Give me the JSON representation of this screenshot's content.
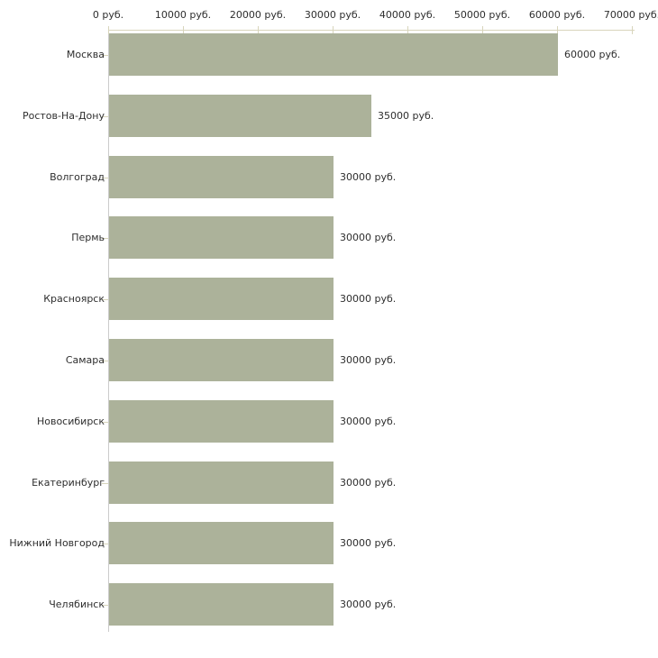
{
  "chart_data": {
    "type": "bar",
    "orientation": "horizontal",
    "title": "",
    "xlabel": "",
    "ylabel": "",
    "categories": [
      "Москва",
      "Ростов-На-Дону",
      "Волгоград",
      "Пермь",
      "Красноярск",
      "Самара",
      "Новосибирск",
      "Екатеринбург",
      "Нижний Новгород",
      "Челябинск"
    ],
    "values": [
      60000,
      35000,
      30000,
      30000,
      30000,
      30000,
      30000,
      30000,
      30000,
      30000
    ],
    "value_labels": [
      "60000 руб.",
      "35000 руб.",
      "30000 руб.",
      "30000 руб.",
      "30000 руб.",
      "30000 руб.",
      "30000 руб.",
      "30000 руб.",
      "30000 руб.",
      "30000 руб."
    ],
    "x_ticks": [
      "0 руб.",
      "10000 руб.",
      "20000 руб.",
      "30000 руб.",
      "40000 руб.",
      "50000 руб.",
      "60000 руб.",
      "70000 руб."
    ],
    "x_tick_values": [
      0,
      10000,
      20000,
      30000,
      40000,
      50000,
      60000,
      70000
    ],
    "xlim": [
      0,
      70000
    ],
    "unit_suffix": " руб.",
    "grid": false,
    "legend_position": "none",
    "colors": {
      "bar": "#acb29a",
      "axis_beige": "#d8d5bc",
      "axis_gray": "#cccccc",
      "text": "#2e2e2e",
      "background": "#ffffff"
    }
  }
}
